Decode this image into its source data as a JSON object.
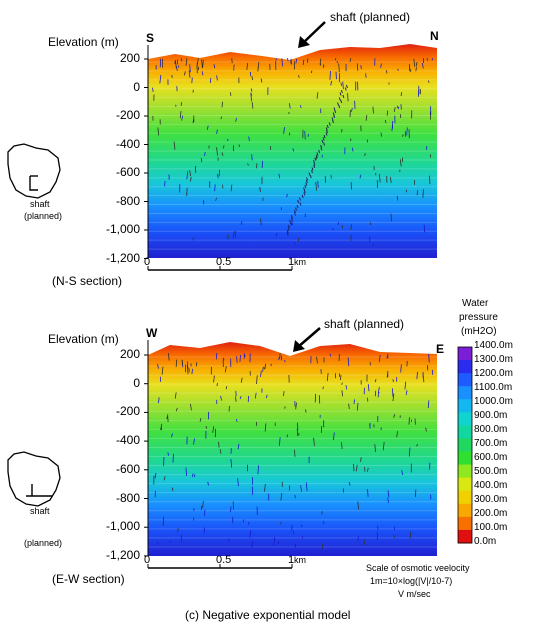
{
  "caption": "(c) Negative exponential model",
  "panels": [
    {
      "id": "ns",
      "elevation_label": "Elevation (m)",
      "left_dir": "S",
      "right_dir": "N",
      "shaft_label": "shaft (planned)",
      "section_label": "(N-S section)",
      "inset_shaft": "shaft",
      "inset_planned": "(planned)",
      "y_ticks": [
        "200",
        "0",
        "-200",
        "-400",
        "-600",
        "-800",
        "-1,000",
        "-1,200"
      ],
      "x_ticks": [
        "0",
        "0.5",
        "1"
      ],
      "x_unit": "km"
    },
    {
      "id": "ew",
      "elevation_label": "Elevation (m)",
      "left_dir": "W",
      "right_dir": "E",
      "shaft_label": "shaft (planned)",
      "section_label": "(E-W section)",
      "inset_shaft": "shaft",
      "inset_planned": "(planned)",
      "y_ticks": [
        "200",
        "0",
        "-200",
        "-400",
        "-600",
        "-800",
        "-1,000",
        "-1,200"
      ],
      "x_ticks": [
        "0",
        "0.5",
        "1"
      ],
      "x_unit": "km"
    }
  ],
  "legend": {
    "title_line1": "Water",
    "title_line2": "pressure",
    "title_line3": "(mH2O)",
    "labels": [
      "1400.0m",
      "1300.0m",
      "1200.0m",
      "1100.0m",
      "1000.0m",
      "900.0m",
      "800.0m",
      "700.0m",
      "600.0m",
      "500.0m",
      "400.0m",
      "300.0m",
      "200.0m",
      "100.0m",
      "0.0m"
    ],
    "colors": [
      "#7a1fd6",
      "#2a2cf0",
      "#1e5cff",
      "#1890ff",
      "#14b8f0",
      "#10d4d0",
      "#10d8a0",
      "#20d860",
      "#30e030",
      "#90e820",
      "#d8e810",
      "#f0d000",
      "#f8a800",
      "#f87000",
      "#e01010"
    ]
  },
  "velocity_scale": {
    "line1": "Scale of osmotic veelocity",
    "line2": "1m=10×log(|V|/10-7)",
    "line3": "V m/sec"
  }
}
